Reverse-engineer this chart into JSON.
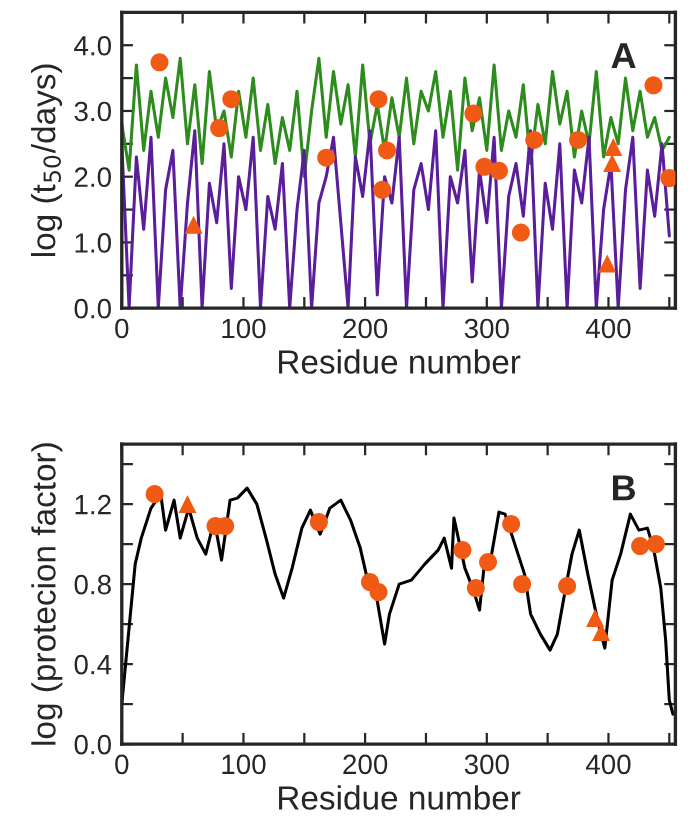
{
  "chart_data": [
    {
      "type": "line",
      "xlabel": "Residue number",
      "ylabel": "log (t$_{50}$/days)",
      "annotations": [
        "A"
      ],
      "xlim": [
        0,
        455
      ],
      "ylim": [
        0,
        4.5
      ],
      "xticks": [
        0,
        {
          "value": 50,
          "label": null
        },
        100,
        {
          "value": 150,
          "label": null
        },
        200,
        {
          "value": 250,
          "label": null
        },
        300,
        {
          "value": 350,
          "label": null
        },
        400,
        {
          "value": 450,
          "label": null
        }
      ],
      "yticks": [
        {
          "value": 0,
          "label": "0.0"
        },
        {
          "value": 0.5,
          "label": null
        },
        {
          "value": 1,
          "label": "1.0"
        },
        {
          "value": 1.5,
          "label": null
        },
        {
          "value": 2,
          "label": "2.0"
        },
        {
          "value": 2.5,
          "label": null
        },
        {
          "value": 3,
          "label": "3.0"
        },
        {
          "value": 3.5,
          "label": null
        },
        {
          "value": 4,
          "label": "4.0"
        }
      ],
      "series": [
        {
          "color": "#2e8b1e",
          "x": [
            0,
            6,
            12,
            18,
            24,
            30,
            36,
            42,
            48,
            54,
            60,
            66,
            72,
            78,
            84,
            90,
            96,
            102,
            108,
            114,
            120,
            126,
            132,
            138,
            144,
            150,
            156,
            162,
            168,
            174,
            180,
            186,
            192,
            198,
            204,
            210,
            216,
            222,
            228,
            234,
            240,
            246,
            252,
            258,
            264,
            270,
            276,
            282,
            288,
            294,
            300,
            306,
            312,
            318,
            324,
            330,
            336,
            342,
            348,
            354,
            360,
            366,
            372,
            378,
            384,
            390,
            396,
            402,
            408,
            414,
            420,
            426,
            432,
            438,
            444,
            450
          ],
          "values": [
            2.8,
            2.1,
            3.7,
            2.4,
            3.3,
            2.6,
            3.5,
            2.9,
            3.8,
            2.5,
            3.4,
            2.2,
            3.6,
            2.7,
            3.0,
            2.3,
            3.3,
            2.6,
            3.5,
            2.4,
            3.1,
            2.2,
            2.9,
            2.4,
            3.3,
            2.0,
            3.0,
            3.8,
            2.6,
            3.6,
            2.8,
            3.4,
            2.3,
            3.7,
            2.5,
            3.1,
            2.4,
            3.2,
            2.6,
            3.5,
            2.5,
            3.3,
            3.0,
            3.6,
            2.6,
            3.3,
            2.1,
            3.5,
            2.7,
            3.2,
            2.4,
            3.7,
            2.4,
            3.0,
            2.6,
            3.4,
            2.2,
            3.1,
            2.5,
            3.6,
            2.8,
            3.3,
            2.3,
            3.0,
            2.5,
            3.6,
            2.3,
            2.9,
            2.5,
            3.5,
            2.7,
            3.3,
            2.6,
            2.9,
            2.4,
            2.6
          ]
        },
        {
          "color": "#5a1e9a",
          "x": [
            0,
            6,
            12,
            18,
            24,
            30,
            36,
            42,
            48,
            54,
            60,
            66,
            72,
            78,
            84,
            90,
            96,
            102,
            108,
            114,
            120,
            126,
            132,
            138,
            144,
            150,
            156,
            162,
            168,
            174,
            180,
            186,
            192,
            198,
            204,
            210,
            216,
            222,
            228,
            234,
            240,
            246,
            252,
            258,
            264,
            270,
            276,
            282,
            288,
            294,
            300,
            306,
            312,
            318,
            324,
            330,
            336,
            342,
            348,
            354,
            360,
            366,
            372,
            378,
            384,
            390,
            396,
            402,
            408,
            414,
            420,
            426,
            432,
            438,
            444,
            450
          ],
          "values": [
            2.5,
            0.0,
            2.3,
            1.2,
            2.6,
            0.0,
            1.8,
            2.4,
            0.0,
            1.6,
            2.7,
            0.0,
            1.9,
            1.3,
            2.5,
            0.3,
            2.0,
            1.5,
            2.6,
            0.0,
            1.7,
            1.2,
            2.2,
            0.0,
            1.5,
            2.4,
            0.0,
            1.6,
            2.0,
            2.6,
            1.3,
            0.0,
            2.3,
            1.7,
            2.7,
            0.2,
            2.0,
            1.6,
            2.6,
            0.0,
            1.8,
            2.2,
            1.5,
            2.7,
            0.0,
            2.0,
            1.6,
            2.4,
            0.4,
            2.1,
            1.3,
            2.6,
            0.0,
            1.7,
            2.2,
            1.4,
            2.7,
            0.0,
            1.9,
            1.2,
            2.5,
            0.0,
            2.1,
            1.6,
            2.6,
            0.0,
            1.5,
            2.2,
            0.0,
            1.8,
            2.6,
            0.3,
            2.1,
            1.4,
            2.5,
            1.1
          ]
        },
        {
          "type": "scatter",
          "marker": "circle",
          "color": "#f05a14",
          "x": [
            31,
            80,
            90,
            168,
            211,
            214,
            218,
            289,
            298,
            310,
            328,
            339,
            375,
            437,
            450
          ],
          "values": [
            3.74,
            2.74,
            3.18,
            2.29,
            3.18,
            1.8,
            2.4,
            2.96,
            2.15,
            2.09,
            1.15,
            2.56,
            2.56,
            3.39,
            1.98
          ]
        },
        {
          "type": "scatter",
          "marker": "triangle",
          "color": "#f05a14",
          "x": [
            59,
            399,
            403,
            404
          ],
          "values": [
            1.27,
            0.68,
            2.21,
            2.45
          ]
        }
      ]
    },
    {
      "type": "line",
      "xlabel": "Residue number",
      "ylabel": "log (protecion factor)",
      "annotations": [
        "B"
      ],
      "xlim": [
        0,
        455
      ],
      "ylim": [
        0,
        1.5
      ],
      "xticks": [
        0,
        {
          "value": 50,
          "label": null
        },
        100,
        {
          "value": 150,
          "label": null
        },
        200,
        {
          "value": 250,
          "label": null
        },
        300,
        {
          "value": 350,
          "label": null
        },
        400,
        {
          "value": 450,
          "label": null
        }
      ],
      "yticks": [
        {
          "value": 0,
          "label": "0.0"
        },
        {
          "value": 0.2,
          "label": null
        },
        {
          "value": 0.4,
          "label": "0.4"
        },
        {
          "value": 0.6,
          "label": null
        },
        {
          "value": 0.8,
          "label": "0.8"
        },
        {
          "value": 1.0,
          "label": null
        },
        {
          "value": 1.2,
          "label": "1.2"
        },
        {
          "value": 1.4,
          "label": null
        }
      ],
      "series": [
        {
          "color": "#000000",
          "x": [
            0,
            11,
            16,
            24,
            32,
            36,
            43,
            48,
            55,
            62,
            69,
            76,
            82,
            89,
            95,
            103,
            111,
            119,
            126,
            133,
            140,
            148,
            155,
            163,
            171,
            180,
            188,
            196,
            202,
            209,
            216,
            220,
            228,
            238,
            249,
            260,
            265,
            271,
            273,
            282,
            289,
            294,
            298,
            304,
            310,
            315,
            323,
            331,
            336,
            344,
            352,
            358,
            366,
            370,
            376,
            383,
            391,
            397,
            403,
            410,
            418,
            425,
            432,
            437,
            443,
            447,
            450,
            453
          ],
          "values": [
            0.2,
            0.9,
            1.03,
            1.18,
            1.25,
            1.07,
            1.22,
            1.03,
            1.18,
            1.03,
            0.95,
            1.12,
            0.92,
            1.22,
            1.23,
            1.28,
            1.2,
            1.02,
            0.85,
            0.73,
            0.88,
            1.08,
            1.17,
            1.05,
            1.18,
            1.22,
            1.12,
            0.98,
            0.82,
            0.75,
            0.5,
            0.65,
            0.8,
            0.82,
            0.9,
            0.97,
            1.03,
            0.88,
            1.13,
            0.88,
            0.77,
            0.67,
            0.9,
            0.95,
            1.16,
            1.15,
            1.0,
            0.85,
            0.65,
            0.55,
            0.47,
            0.55,
            0.82,
            0.95,
            1.07,
            0.85,
            0.62,
            0.48,
            0.82,
            0.95,
            1.15,
            1.07,
            1.08,
            0.98,
            0.78,
            0.52,
            0.22,
            0.15
          ]
        },
        {
          "type": "scatter",
          "marker": "circle",
          "color": "#f05a14",
          "x": [
            27,
            77,
            85,
            162,
            204,
            211,
            280,
            291,
            301,
            320,
            329,
            366,
            426,
            439
          ],
          "values": [
            1.25,
            1.09,
            1.09,
            1.11,
            0.81,
            0.76,
            0.97,
            0.78,
            0.91,
            1.1,
            0.8,
            0.79,
            0.99,
            1.0
          ]
        },
        {
          "type": "scatter",
          "marker": "triangle",
          "color": "#f05a14",
          "x": [
            54,
            389,
            394
          ],
          "values": [
            1.2,
            0.63,
            0.56
          ]
        }
      ]
    }
  ]
}
